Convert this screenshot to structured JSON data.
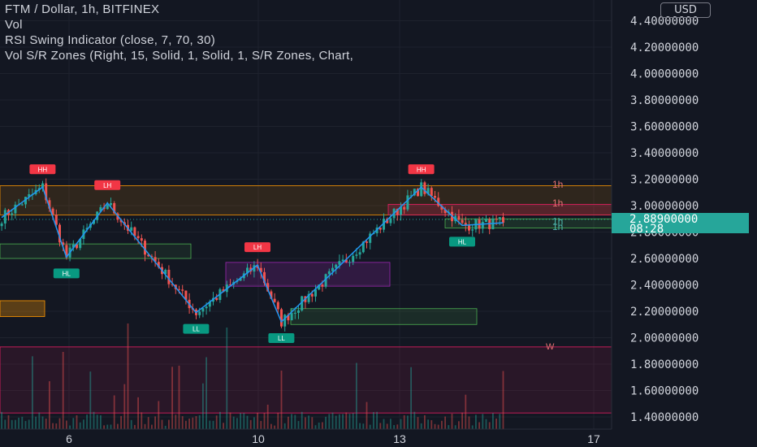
{
  "legend": {
    "symbol_line": "FTM / Dollar, 1h, BITFINEX",
    "vol_line": "Vol",
    "rsi_line": "RSI Swing Indicator (close, 7, 70, 30)",
    "sr_line": "Vol S/R Zones (Right, 15, Solid, 1, Solid, 1, S/R Zones, Chart,"
  },
  "currency_button": "USD",
  "last_price": {
    "value": "2.88900000",
    "countdown": "08:28",
    "color": "#26a69a"
  },
  "colors": {
    "up": "#26a69a",
    "down": "#ef5350",
    "swing_line": "#2196f3",
    "background": "#131722",
    "axis_text": "#d1d4dc"
  },
  "chart_data": {
    "type": "candlestick",
    "symbol": "FTM / Dollar",
    "interval": "1h",
    "exchange": "BITFINEX",
    "y_ticks": [
      "4.40000000",
      "4.20000000",
      "4.00000000",
      "3.80000000",
      "3.60000000",
      "3.40000000",
      "3.20000000",
      "3.00000000",
      "2.80000000",
      "2.60000000",
      "2.40000000",
      "2.20000000",
      "2.00000000",
      "1.80000000",
      "1.60000000",
      "1.40000000"
    ],
    "x_ticks": [
      "6",
      "10",
      "13",
      "17"
    ],
    "ylim": [
      1.33,
      4.5
    ],
    "swing_points": [
      {
        "x": 0,
        "y": 2.91
      },
      {
        "x": 12,
        "y": 3.14,
        "label": "HH"
      },
      {
        "x": 19,
        "y": 2.61,
        "label": "HL"
      },
      {
        "x": 31,
        "y": 3.02,
        "label": "LH"
      },
      {
        "x": 57,
        "y": 2.19,
        "label": "LL"
      },
      {
        "x": 75,
        "y": 2.55,
        "label": "LH"
      },
      {
        "x": 82,
        "y": 2.12,
        "label": "LL"
      },
      {
        "x": 123,
        "y": 3.14,
        "label": "HH"
      },
      {
        "x": 135,
        "y": 2.85,
        "label": "HL"
      },
      {
        "x": 147,
        "y": 2.87
      }
    ],
    "zone_labels": [
      "1h",
      "1h",
      "1h",
      "1h"
    ],
    "vol_label": "W"
  }
}
